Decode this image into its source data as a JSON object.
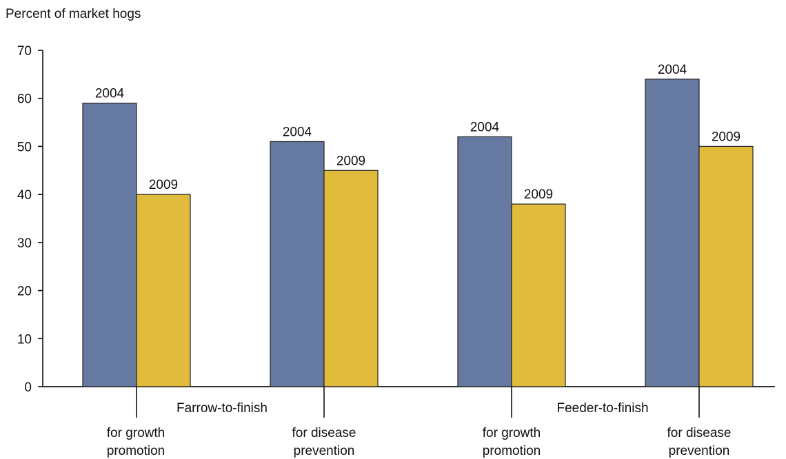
{
  "chart_data": {
    "type": "bar",
    "ylabel": "Percent of market hogs",
    "ylim": [
      0,
      70
    ],
    "yticks": [
      0,
      10,
      20,
      30,
      40,
      50,
      60,
      70
    ],
    "grid": false,
    "legend": "none (bars labeled directly)",
    "categories": [
      "for growth promotion",
      "for disease prevention",
      "for growth promotion",
      "for disease prevention"
    ],
    "category_lines": [
      [
        "for growth",
        "promotion"
      ],
      [
        "for disease",
        "prevention"
      ],
      [
        "for growth",
        "promotion"
      ],
      [
        "for disease",
        "prevention"
      ]
    ],
    "groups": [
      {
        "label": "Farrow-to-finish",
        "categories": [
          0,
          1
        ]
      },
      {
        "label": "Feeder-to-finish",
        "categories": [
          2,
          3
        ]
      }
    ],
    "series": [
      {
        "name": "2004",
        "color": "#6679a0",
        "values": [
          59,
          51,
          52,
          64
        ]
      },
      {
        "name": "2009",
        "color": "#e1bb3b",
        "values": [
          40,
          45,
          38,
          50
        ]
      }
    ]
  }
}
